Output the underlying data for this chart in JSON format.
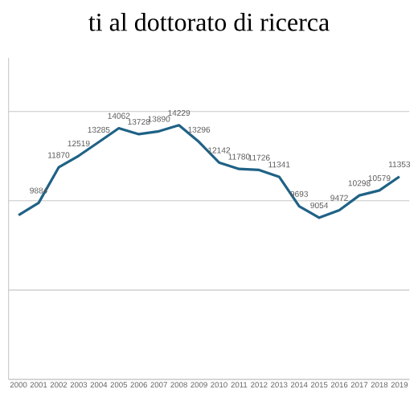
{
  "chart_data": {
    "type": "line",
    "title": "ti al dottorato di ricerca",
    "categories": [
      "2000",
      "2001",
      "2002",
      "2003",
      "2004",
      "2005",
      "2006",
      "2007",
      "2008",
      "2009",
      "2010",
      "2011",
      "2012",
      "2013",
      "2014",
      "2015",
      "2016",
      "2017",
      "2018",
      "2019"
    ],
    "series": [
      {
        "color": "#1f6286",
        "values": [
          9200,
          9884,
          11870,
          12519,
          13285,
          14062,
          13728,
          13890,
          14229,
          13296,
          12142,
          11780,
          11726,
          11341,
          9693,
          9054,
          9472,
          10298,
          10579,
          11353
        ],
        "value_labels": [
          null,
          "9884",
          "11870",
          "12519",
          "13285",
          "14062",
          "13728",
          "13890",
          "14229",
          "13296",
          "12142",
          "11780",
          "11726",
          "11341",
          "9693",
          "9054",
          "9472",
          "10298",
          "10579",
          "11353"
        ]
      }
    ],
    "ylim": [
      0,
      18000
    ],
    "grid": "y",
    "tick_labels": "x",
    "marker": "none",
    "line_style": "solid"
  }
}
